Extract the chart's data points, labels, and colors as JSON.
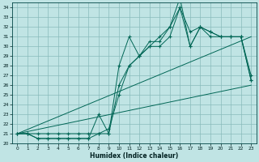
{
  "xlabel": "Humidex (Indice chaleur)",
  "bg_color": "#c0e4e4",
  "grid_color": "#88bbbb",
  "line_color": "#006655",
  "xlim": [
    -0.5,
    23.5
  ],
  "ylim": [
    20,
    34.5
  ],
  "yticks": [
    20,
    21,
    22,
    23,
    24,
    25,
    26,
    27,
    28,
    29,
    30,
    31,
    32,
    33,
    34
  ],
  "xticks": [
    0,
    1,
    2,
    3,
    4,
    5,
    6,
    7,
    8,
    9,
    10,
    11,
    12,
    13,
    14,
    15,
    16,
    17,
    18,
    19,
    20,
    21,
    22,
    23
  ],
  "series": {
    "upper": {
      "x": [
        0,
        1,
        2,
        3,
        4,
        5,
        6,
        7,
        8,
        9,
        10,
        11,
        12,
        13,
        14,
        15,
        16,
        17,
        18,
        19,
        20,
        21,
        22,
        23
      ],
      "y": [
        21,
        21,
        21,
        21,
        21,
        21,
        21,
        21,
        21,
        21,
        28,
        31,
        29,
        30,
        31,
        32,
        35,
        30,
        32,
        31.5,
        31,
        31,
        31,
        27
      ]
    },
    "lower": {
      "x": [
        0,
        1,
        2,
        3,
        4,
        5,
        6,
        7,
        8,
        9,
        10,
        11,
        12,
        13,
        14,
        15,
        16,
        17,
        18,
        19,
        20,
        21,
        22,
        23
      ],
      "y": [
        21,
        21,
        20.5,
        20.5,
        20.5,
        20.5,
        20.5,
        20.5,
        21,
        21.5,
        25,
        28,
        29,
        30.5,
        30.5,
        32,
        34,
        31.5,
        32,
        31,
        31,
        31,
        31,
        26.5
      ]
    },
    "mid": {
      "x": [
        0,
        1,
        2,
        3,
        4,
        5,
        6,
        7,
        8,
        9,
        10,
        11,
        12,
        13,
        14,
        15,
        16,
        17,
        18,
        19,
        20,
        21,
        22,
        23
      ],
      "y": [
        21,
        21,
        20.5,
        20.5,
        20.5,
        20.5,
        20.5,
        20.5,
        23,
        21,
        26,
        28,
        29,
        30,
        30,
        31,
        34,
        30,
        32,
        31.5,
        31,
        31,
        31,
        26.5
      ]
    },
    "trend_low": {
      "x": [
        0,
        23
      ],
      "y": [
        21,
        26
      ]
    },
    "trend_high": {
      "x": [
        0,
        23
      ],
      "y": [
        21,
        31
      ]
    }
  }
}
